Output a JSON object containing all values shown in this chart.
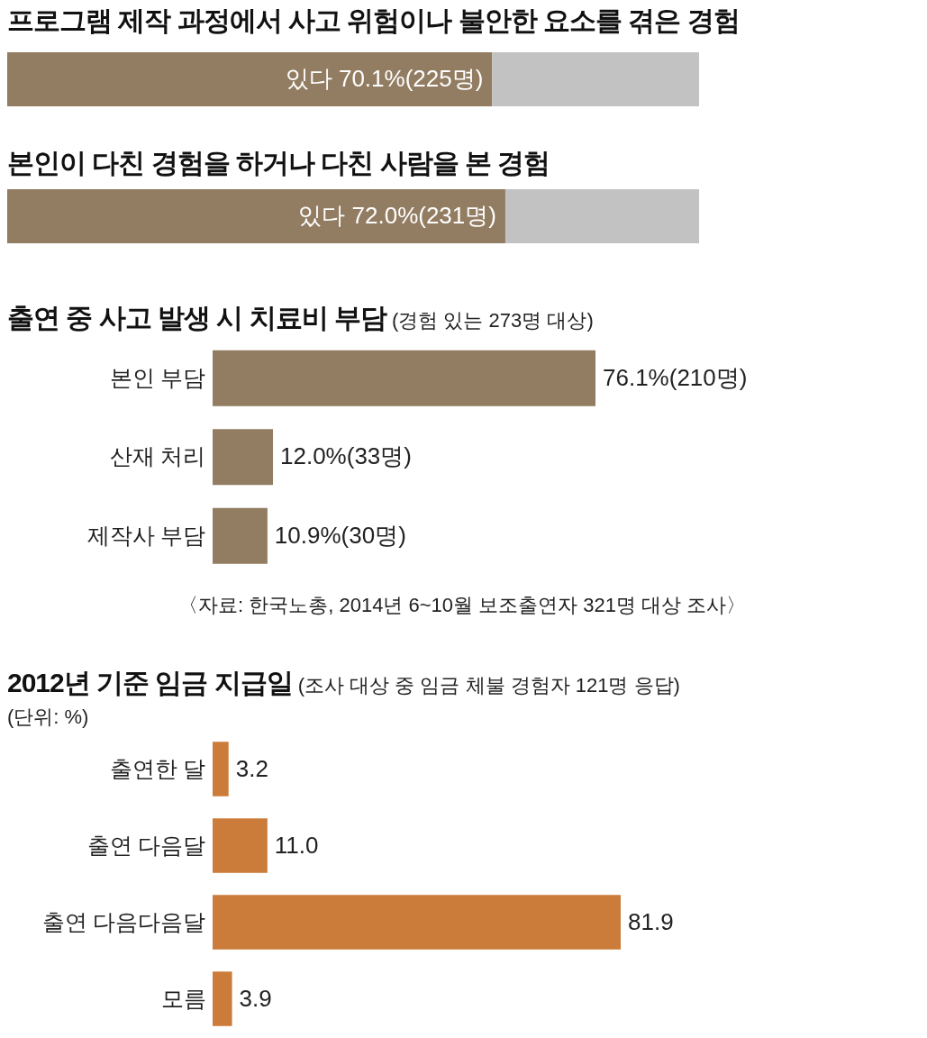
{
  "chart_data": [
    {
      "type": "bar",
      "title": "프로그램 제작 과정에서 사고 위험이나 불안한 요소를 겪은 경험",
      "orientation": "horizontal",
      "stacked": true,
      "categories": [
        null
      ],
      "xlim": [
        0,
        100
      ],
      "series": [
        {
          "color": "#927d62",
          "values": [
            70.1
          ],
          "value_labels": [
            "있다 70.1%(225명)"
          ]
        },
        {
          "color": "#c2c2c2",
          "values": [
            29.9
          ]
        }
      ]
    },
    {
      "type": "bar",
      "title": "본인이 다친 경험을 하거나 다친 사람을 본 경험",
      "orientation": "horizontal",
      "stacked": true,
      "categories": [
        null
      ],
      "xlim": [
        0,
        100
      ],
      "series": [
        {
          "color": "#927d62",
          "values": [
            72.0
          ],
          "value_labels": [
            "있다 72.0%(231명)"
          ]
        },
        {
          "color": "#c2c2c2",
          "values": [
            28.0
          ]
        }
      ]
    },
    {
      "type": "bar",
      "title": "출연 중 사고 발생 시 치료비 부담",
      "subtitle": "(경험 있는 273명 대상)",
      "orientation": "horizontal",
      "categories": [
        "본인 부담",
        "산재 처리",
        "제작사 부담"
      ],
      "values": [
        76.1,
        12.0,
        10.9
      ],
      "color": "#927d62",
      "value_labels": [
        "76.1%(210명)",
        "12.0%(33명)",
        "10.9%(30명)"
      ],
      "annotations": [
        "〈자료: 한국노총, 2014년 6~10월 보조출연자 321명 대상 조사〉"
      ]
    },
    {
      "type": "bar",
      "title": "2012년 기준 임금 지급일",
      "subtitle": "(조사 대상 중 임금 체불 경험자 121명 응답)",
      "orientation": "horizontal",
      "categories": [
        "출연한 달",
        "출연 다음달",
        "출연 다음다음달",
        "모름"
      ],
      "values": [
        3.2,
        11.0,
        81.9,
        3.9
      ],
      "color": "#cc7c3a",
      "value_labels": [
        "3.2",
        "11.0",
        "81.9",
        "3.9"
      ],
      "annotations": [
        "(단위: %)"
      ]
    }
  ]
}
